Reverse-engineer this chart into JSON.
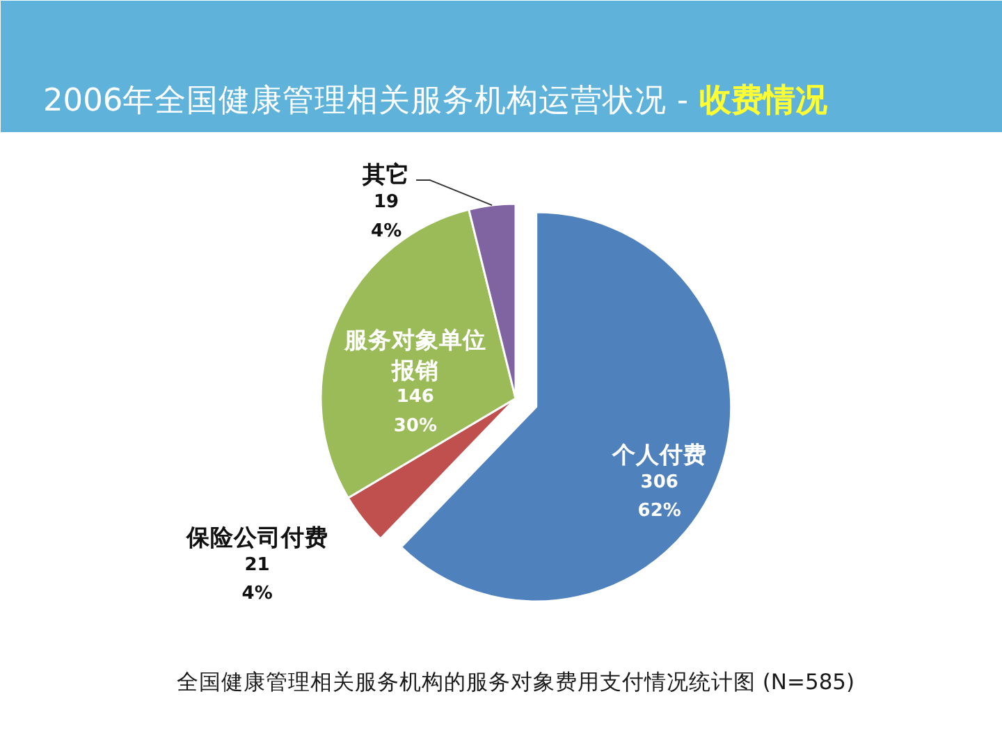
{
  "chart_data": {
    "type": "pie",
    "title": "2006年全国健康管理相关服务机构运营状况 -",
    "subtitle": "收费情况",
    "categories": [
      "个人付费",
      "保险公司付费",
      "服务对象单位报销",
      "其它"
    ],
    "values": [
      306,
      21,
      146,
      19
    ],
    "colors": [
      "#4f81bd",
      "#c0504d",
      "#9bbb59",
      "#8064a2"
    ],
    "value_labels": [
      "306\n62%",
      "21\n4%",
      "146\n30%",
      "19\n4%"
    ],
    "annotations": [
      "全国健康管理相关服务机构的服务对象费用支付情况统计图 (N=585)"
    ]
  }
}
